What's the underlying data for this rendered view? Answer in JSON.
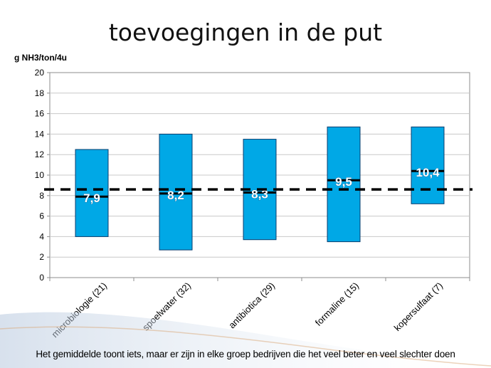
{
  "slide": {
    "title": "toevoegingen in de put",
    "footer": "Het gemiddelde toont iets, maar er zijn in elke groep bedrijven die het veel beter en veel slechter doen"
  },
  "colors": {
    "box": "#00a8e6",
    "box_edge": "#0a3c6e",
    "mean_line": "#000000",
    "gridline": "#c8c8c8",
    "plot_bg": "#ffffff"
  },
  "chart_data": {
    "type": "box",
    "ylabel": "g NH3/ton/4u",
    "xlabel": "",
    "ylim": [
      0,
      20
    ],
    "ytick_step": 2,
    "grid": true,
    "categories": [
      "microbiologie (21)",
      "spoelwater (32)",
      "antibiotica (29)",
      "formaline (15)",
      "kopersulfaat (7)"
    ],
    "low": [
      4.0,
      2.7,
      3.7,
      3.5,
      7.2
    ],
    "high": [
      12.5,
      14.0,
      13.5,
      14.7,
      14.7
    ],
    "mean": [
      7.9,
      8.2,
      8.3,
      9.5,
      10.4
    ],
    "mean_labels": [
      "7,9",
      "8,2",
      "8,3",
      "9,5",
      "10,4"
    ],
    "reference_line": {
      "value": 8.6,
      "style": "dashed"
    }
  }
}
